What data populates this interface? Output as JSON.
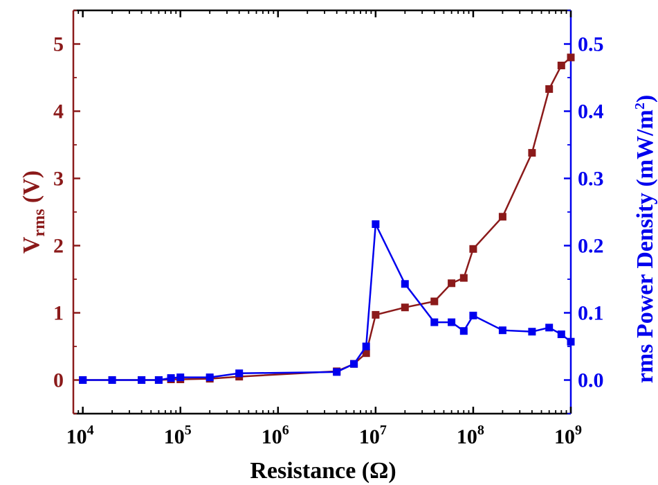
{
  "chart_data": {
    "type": "line",
    "xscale": "log",
    "xlim": [
      8000,
      1000000000
    ],
    "xlabel": "Resistance (Ω)",
    "x_ticks": [
      10000,
      100000,
      1000000,
      10000000,
      100000000,
      1000000000
    ],
    "x_tick_labels": [
      {
        "base": "10",
        "exp": "4"
      },
      {
        "base": "10",
        "exp": "5"
      },
      {
        "base": "10",
        "exp": "6"
      },
      {
        "base": "10",
        "exp": "7"
      },
      {
        "base": "10",
        "exp": "8"
      },
      {
        "base": "10",
        "exp": "9"
      }
    ],
    "y_left": {
      "label_main": "V",
      "label_sub": "rms",
      "label_unit": " (V)",
      "ylim": [
        -0.5,
        5.5
      ],
      "ticks": [
        0,
        1,
        2,
        3,
        4,
        5
      ],
      "tick_labels": [
        "0",
        "1",
        "2",
        "3",
        "4",
        "5"
      ],
      "color": "#8B1A1A"
    },
    "y_right": {
      "label": "rms Power Density (mW/m",
      "label_sup": "2",
      "label_end": ")",
      "ylim": [
        -0.05,
        0.55
      ],
      "ticks": [
        0,
        0.1,
        0.2,
        0.3,
        0.4,
        0.5
      ],
      "tick_labels": [
        "0.0",
        "0.1",
        "0.2",
        "0.3",
        "0.4",
        "0.5"
      ],
      "color": "#0000EE"
    },
    "series": [
      {
        "axis": "left",
        "color": "#8B1A1A",
        "x": [
          10000,
          20000,
          40000,
          60000,
          80000,
          100000,
          200000,
          400000,
          4000000,
          6000000,
          8000000,
          10000000,
          20000000,
          40000000,
          60000000,
          80000000,
          100000000,
          200000000,
          400000000,
          600000000,
          800000000,
          1000000000
        ],
        "y": [
          0.0,
          0.0,
          0.0,
          0.0,
          0.01,
          0.01,
          0.02,
          0.05,
          0.13,
          0.24,
          0.4,
          0.97,
          1.08,
          1.17,
          1.44,
          1.52,
          1.95,
          2.43,
          3.38,
          4.33,
          4.68,
          4.8
        ]
      },
      {
        "axis": "right",
        "color": "#0000EE",
        "x": [
          10000,
          20000,
          40000,
          60000,
          80000,
          100000,
          200000,
          400000,
          4000000,
          6000000,
          8000000,
          10000000,
          20000000,
          40000000,
          60000000,
          80000000,
          100000000,
          200000000,
          400000000,
          600000000,
          800000000,
          1000000000
        ],
        "y": [
          0.0,
          0.0,
          0.0,
          0.0,
          0.003,
          0.004,
          0.004,
          0.01,
          0.012,
          0.024,
          0.05,
          0.232,
          0.143,
          0.086,
          0.086,
          0.073,
          0.096,
          0.074,
          0.072,
          0.078,
          0.068,
          0.057
        ]
      }
    ],
    "grid": false,
    "legend": "none"
  }
}
